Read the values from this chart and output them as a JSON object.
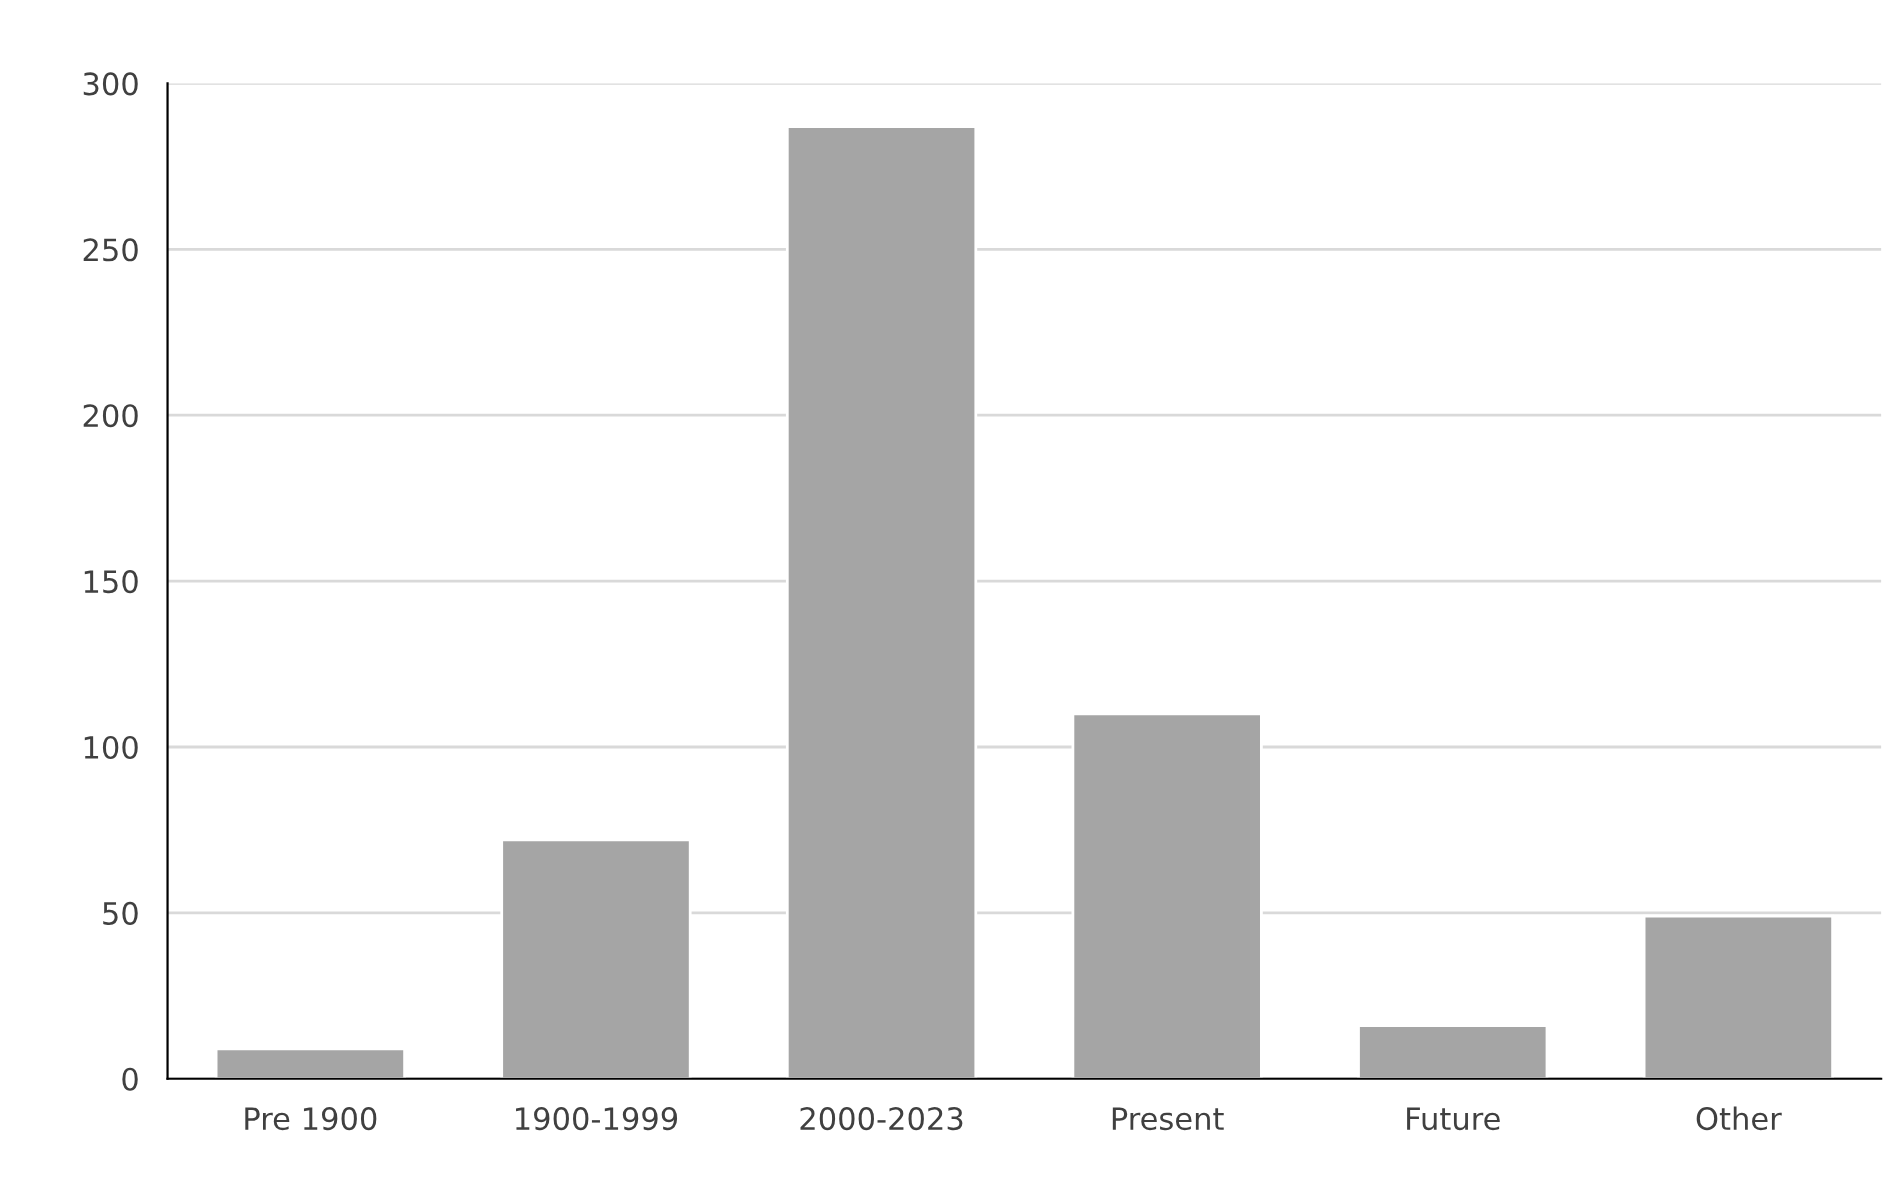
{
  "chart_data": {
    "type": "bar",
    "categories": [
      "Pre 1900",
      "1900-1999",
      "2000-2023",
      "Present",
      "Future",
      "Other"
    ],
    "values": [
      9,
      72,
      287,
      110,
      16,
      49
    ],
    "color": "#a5a5a5",
    "ylim": [
      0,
      300
    ],
    "yticks": [
      0,
      50,
      100,
      150,
      200,
      250,
      300
    ],
    "grid": "y"
  }
}
